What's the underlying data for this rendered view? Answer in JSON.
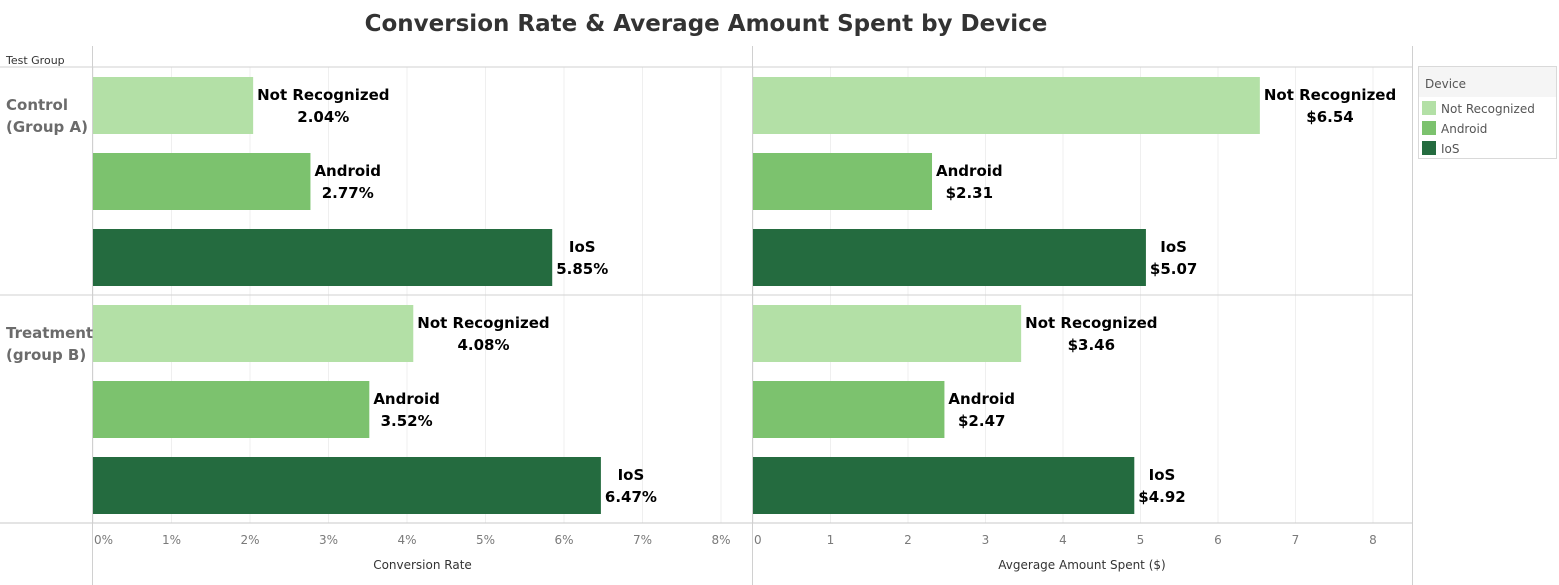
{
  "chart_data": {
    "type": "bar",
    "title": "Conversion Rate & Average Amount Spent by Device",
    "row_header": "Test Group",
    "groups": [
      {
        "label": [
          "Control",
          "(Group A)"
        ]
      },
      {
        "label": [
          "Treatment",
          "(group B)"
        ]
      }
    ],
    "categories": [
      "Not Recognized",
      "Android",
      "IoS"
    ],
    "colors": {
      "Not Recognized": "#b3e0a6",
      "Android": "#7cc26e",
      "IoS": "#246b3f"
    },
    "panels": [
      {
        "xlabel": "Conversion Rate",
        "xlim": [
          0,
          8
        ],
        "ticks": [
          "0%",
          "1%",
          "2%",
          "3%",
          "4%",
          "5%",
          "6%",
          "7%",
          "8%"
        ],
        "values": [
          [
            2.04,
            2.77,
            5.85
          ],
          [
            4.08,
            3.52,
            6.47
          ]
        ],
        "labels": [
          [
            "2.04%",
            "2.77%",
            "5.85%"
          ],
          [
            "4.08%",
            "3.52%",
            "6.47%"
          ]
        ]
      },
      {
        "xlabel": "Avgerage Amount Spent ($)",
        "xlim": [
          0,
          8
        ],
        "ticks": [
          "0",
          "1",
          "2",
          "3",
          "4",
          "5",
          "6",
          "7",
          "8"
        ],
        "values": [
          [
            6.54,
            2.31,
            5.07
          ],
          [
            3.46,
            2.47,
            4.92
          ]
        ],
        "labels": [
          [
            "$6.54",
            "$2.31",
            "$5.07"
          ],
          [
            "$3.46",
            "$2.47",
            "$4.92"
          ]
        ]
      }
    ],
    "legend": {
      "title": "Device",
      "items": [
        "Not Recognized",
        "Android",
        "IoS"
      ],
      "position": "right"
    },
    "grid": true
  }
}
